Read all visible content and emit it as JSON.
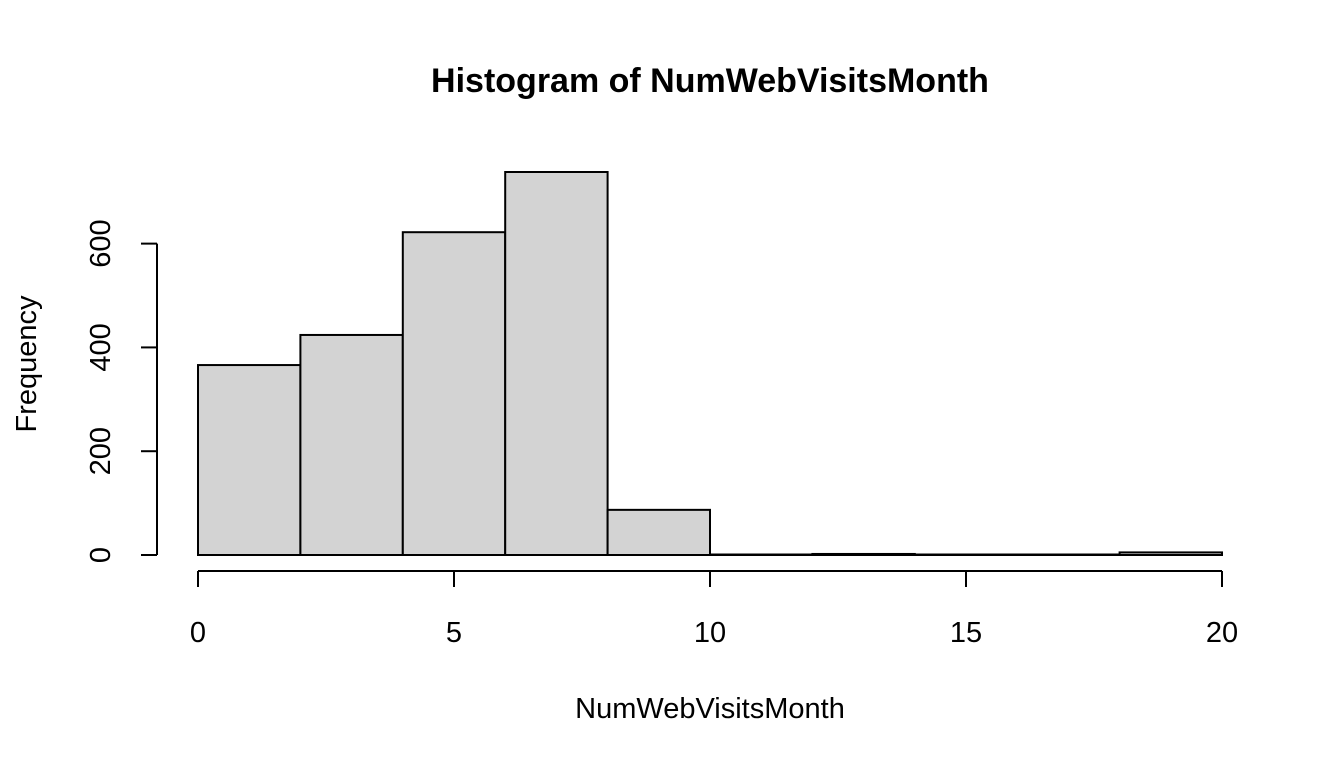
{
  "chart_data": {
    "type": "bar",
    "title": "Histogram of NumWebVisitsMonth",
    "xlabel": "NumWebVisitsMonth",
    "ylabel": "Frequency",
    "bins": [
      {
        "start": 0,
        "end": 2,
        "count": 366
      },
      {
        "start": 2,
        "end": 4,
        "count": 424
      },
      {
        "start": 4,
        "end": 6,
        "count": 622
      },
      {
        "start": 6,
        "end": 8,
        "count": 738
      },
      {
        "start": 8,
        "end": 10,
        "count": 87
      },
      {
        "start": 10,
        "end": 12,
        "count": 0
      },
      {
        "start": 12,
        "end": 14,
        "count": 2
      },
      {
        "start": 14,
        "end": 16,
        "count": 0
      },
      {
        "start": 16,
        "end": 18,
        "count": 0
      },
      {
        "start": 18,
        "end": 20,
        "count": 5
      }
    ],
    "x_ticks": [
      0,
      5,
      10,
      15,
      20
    ],
    "y_ticks": [
      0,
      200,
      400,
      600
    ],
    "xlim": [
      0,
      20
    ],
    "ylim": [
      0,
      738
    ],
    "bar_color": "#d3d3d3",
    "grid": false,
    "legend": "none"
  }
}
